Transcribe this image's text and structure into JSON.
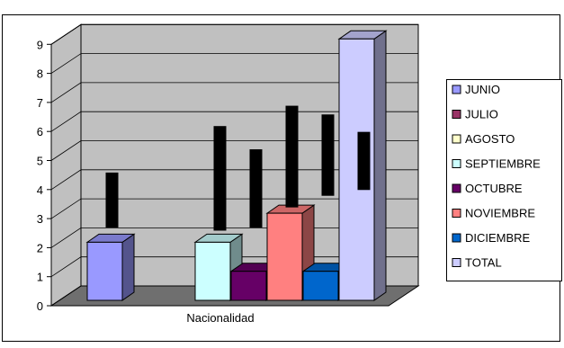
{
  "chart_data": {
    "type": "bar",
    "variant": "3d-clustered-column",
    "categories": [
      "Nacionalidad"
    ],
    "xlabel": "",
    "ylabel": "",
    "ylim": [
      0,
      9
    ],
    "y_ticks": [
      "0",
      "1",
      "2",
      "3",
      "4",
      "5",
      "6",
      "7",
      "8",
      "9"
    ],
    "grid": true,
    "legend_position": "right",
    "series": [
      {
        "name": "JUNIO",
        "values": [
          2
        ],
        "color": "#9999ff"
      },
      {
        "name": "JULIO",
        "values": [
          0
        ],
        "color": "#993366"
      },
      {
        "name": "AGOSTO",
        "values": [
          0
        ],
        "color": "#ffffcc"
      },
      {
        "name": "SEPTIEMBRE",
        "values": [
          2
        ],
        "color": "#ccffff"
      },
      {
        "name": "OCTUBRE",
        "values": [
          1
        ],
        "color": "#660066"
      },
      {
        "name": "NOVIEMBRE",
        "values": [
          3
        ],
        "color": "#ff8080"
      },
      {
        "name": "DICIEMBRE",
        "values": [
          1
        ],
        "color": "#0066cc"
      },
      {
        "name": "TOTAL",
        "values": [
          9
        ],
        "color": "#ccccff"
      }
    ],
    "error_bars": [
      {
        "low": 2.5,
        "high": 4.4
      },
      null,
      null,
      {
        "low": 2.4,
        "high": 6.0
      },
      {
        "low": 2.5,
        "high": 5.2
      },
      {
        "low": 3.2,
        "high": 6.7
      },
      {
        "low": 3.6,
        "high": 6.4
      },
      {
        "low": 3.8,
        "high": 5.8
      }
    ]
  }
}
